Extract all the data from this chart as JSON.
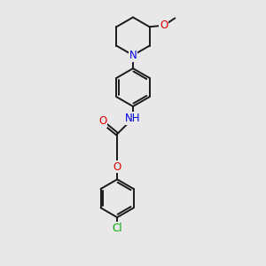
{
  "bg_color": "#e8e8e8",
  "bond_color": "#1a1a1a",
  "atom_colors": {
    "N": "#0000dd",
    "O": "#dd0000",
    "Cl": "#00aa00",
    "C": "#1a1a1a"
  },
  "bond_width": 1.4,
  "font_size_atom": 7.5
}
